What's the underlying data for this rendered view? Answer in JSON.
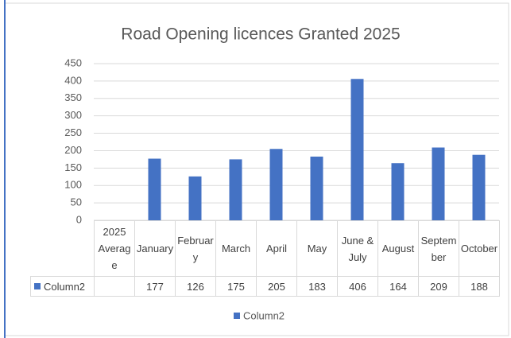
{
  "chart_data": {
    "type": "bar",
    "title": "Road Opening licences Granted 2025",
    "categories": [
      "2025 Average",
      "January",
      "February",
      "March",
      "April",
      "May",
      "June & July",
      "August",
      "September",
      "October"
    ],
    "series": [
      {
        "name": "Column2",
        "color": "#4472c4",
        "values": [
          null,
          177,
          126,
          175,
          205,
          183,
          406,
          164,
          209,
          188
        ]
      }
    ],
    "ylim": [
      0,
      450
    ],
    "yticks": [
      0,
      50,
      100,
      150,
      200,
      250,
      300,
      350,
      400,
      450
    ],
    "grid": true,
    "legend": "bottom"
  }
}
